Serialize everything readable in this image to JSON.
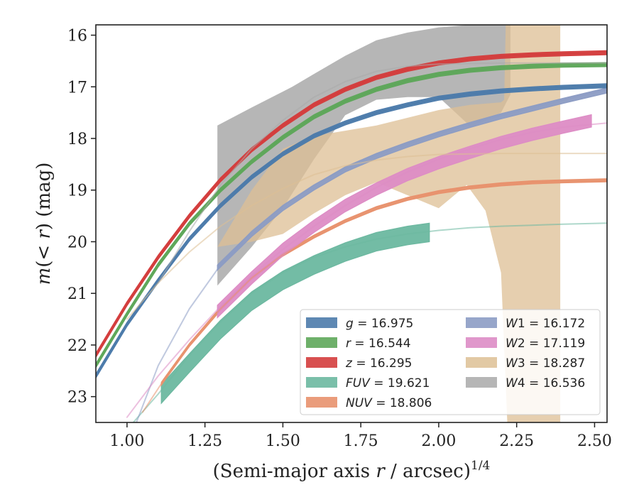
{
  "chart_data": {
    "type": "line",
    "xlabel": "(Semi-major axis r / arcsec)^1/4",
    "ylabel": "m(< r) (mag)",
    "xlim": [
      0.9,
      2.54
    ],
    "ylim": [
      23.5,
      15.8
    ],
    "y_inverted": true,
    "grid": false,
    "legend_position": "lower-right",
    "xticks": [
      1.0,
      1.25,
      1.5,
      1.75,
      2.0,
      2.25,
      2.5
    ],
    "xtick_labels": [
      "1.00",
      "1.25",
      "1.50",
      "1.75",
      "2.00",
      "2.25",
      "2.50"
    ],
    "yticks": [
      16,
      17,
      18,
      19,
      20,
      21,
      22,
      23
    ],
    "ytick_labels": [
      "16",
      "17",
      "18",
      "19",
      "20",
      "21",
      "22",
      "23"
    ],
    "xlabel_parts": {
      "pre": "(Semi-major axis ",
      "var": "r",
      "post": " / arcsec)",
      "sup": "1/4"
    },
    "ylabel_parts": {
      "var1": "m",
      "open": "(",
      "lt": "< ",
      "var2": "r",
      "close": ")",
      "unit": " (mag)"
    },
    "series": [
      {
        "name": "g",
        "legend_label": "g = 16.975",
        "color": "#4c7bab",
        "fit": {
          "x": [
            0.9,
            1.0,
            1.1,
            1.2,
            1.3,
            1.4,
            1.5,
            1.6,
            1.7,
            1.8,
            1.9,
            2.0,
            2.1,
            2.2,
            2.3,
            2.4,
            2.54
          ],
          "y": [
            22.6,
            21.6,
            20.75,
            19.95,
            19.3,
            18.75,
            18.3,
            17.95,
            17.7,
            17.5,
            17.35,
            17.22,
            17.14,
            17.08,
            17.04,
            17.01,
            16.98
          ]
        },
        "data_band": {
          "x": [
            0.9,
            1.0,
            1.1,
            1.2,
            1.3,
            1.4,
            1.5,
            1.6,
            1.7,
            1.8,
            1.9,
            2.0,
            2.1,
            2.2,
            2.3,
            2.4,
            2.54
          ],
          "y": [
            22.6,
            21.6,
            20.75,
            19.95,
            19.3,
            18.75,
            18.3,
            17.95,
            17.7,
            17.5,
            17.35,
            17.22,
            17.14,
            17.08,
            17.04,
            17.01,
            16.98
          ],
          "half_width": 0.04
        }
      },
      {
        "name": "r",
        "legend_label": "r = 16.544",
        "color": "#5ea75a",
        "fit": {
          "x": [
            0.9,
            1.0,
            1.1,
            1.2,
            1.3,
            1.4,
            1.5,
            1.6,
            1.7,
            1.8,
            1.9,
            2.0,
            2.1,
            2.2,
            2.3,
            2.4,
            2.54
          ],
          "y": [
            22.4,
            21.4,
            20.45,
            19.65,
            19.0,
            18.45,
            17.98,
            17.58,
            17.28,
            17.05,
            16.88,
            16.76,
            16.68,
            16.63,
            16.6,
            16.58,
            16.57
          ]
        },
        "data_band": {
          "x": [
            0.9,
            1.0,
            1.1,
            1.2,
            1.3,
            1.4,
            1.5,
            1.6,
            1.7,
            1.8,
            1.9,
            2.0,
            2.1,
            2.2,
            2.3,
            2.4,
            2.54
          ],
          "y": [
            22.4,
            21.4,
            20.45,
            19.65,
            19.0,
            18.45,
            17.98,
            17.58,
            17.28,
            17.05,
            16.88,
            16.76,
            16.68,
            16.63,
            16.6,
            16.58,
            16.57
          ],
          "half_width": 0.04
        }
      },
      {
        "name": "z",
        "legend_label": "z = 16.295",
        "color": "#d43d3d",
        "fit": {
          "x": [
            0.9,
            1.0,
            1.1,
            1.2,
            1.3,
            1.4,
            1.5,
            1.6,
            1.7,
            1.8,
            1.9,
            2.0,
            2.1,
            2.2,
            2.3,
            2.4,
            2.54
          ],
          "y": [
            22.2,
            21.2,
            20.3,
            19.5,
            18.8,
            18.22,
            17.75,
            17.35,
            17.05,
            16.82,
            16.66,
            16.54,
            16.46,
            16.41,
            16.38,
            16.36,
            16.34
          ]
        },
        "data_band": {
          "x": [
            0.9,
            1.0,
            1.1,
            1.2,
            1.3,
            1.4,
            1.5,
            1.6,
            1.7,
            1.8,
            1.9,
            2.0,
            2.1,
            2.2,
            2.3,
            2.4,
            2.54
          ],
          "y": [
            22.2,
            21.2,
            20.3,
            19.5,
            18.8,
            18.22,
            17.75,
            17.35,
            17.05,
            16.82,
            16.66,
            16.54,
            16.46,
            16.41,
            16.38,
            16.36,
            16.34
          ],
          "half_width": 0.04
        }
      },
      {
        "name": "FUV",
        "legend_label": "FUV = 19.621",
        "color": "#6cb8a0",
        "fit": {
          "x": [
            1.02,
            1.1,
            1.2,
            1.3,
            1.4,
            1.5,
            1.6,
            1.7,
            1.8,
            1.9,
            2.0,
            2.1,
            2.2,
            2.3,
            2.4,
            2.54
          ],
          "y": [
            23.5,
            22.95,
            22.2,
            21.55,
            21.0,
            20.6,
            20.3,
            20.1,
            19.95,
            19.85,
            19.78,
            19.73,
            19.7,
            19.68,
            19.66,
            19.64
          ]
        },
        "data_band": {
          "x": [
            1.11,
            1.2,
            1.3,
            1.4,
            1.5,
            1.6,
            1.7,
            1.8,
            1.9,
            1.97
          ],
          "y": [
            22.95,
            22.35,
            21.7,
            21.15,
            20.75,
            20.45,
            20.2,
            20.0,
            19.88,
            19.82
          ],
          "half_width": 0.18
        }
      },
      {
        "name": "NUV",
        "legend_label": "NUV = 18.806",
        "color": "#e8916d",
        "fit": {
          "x": [
            1.05,
            1.11,
            1.2,
            1.3,
            1.4,
            1.5,
            1.6,
            1.7,
            1.8,
            1.9,
            2.0,
            2.1,
            2.2,
            2.3,
            2.4,
            2.54
          ],
          "y": [
            23.3,
            22.75,
            22.0,
            21.3,
            20.7,
            20.25,
            19.9,
            19.6,
            19.35,
            19.17,
            19.04,
            18.95,
            18.89,
            18.85,
            18.83,
            18.81
          ]
        },
        "data_band": {
          "x": [
            1.11,
            1.2,
            1.3,
            1.4,
            1.5,
            1.6,
            1.7,
            1.8,
            1.9,
            2.0,
            2.1,
            2.2,
            2.3,
            2.4,
            2.54
          ],
          "y": [
            22.75,
            22.0,
            21.3,
            20.7,
            20.25,
            19.9,
            19.6,
            19.35,
            19.17,
            19.04,
            18.95,
            18.89,
            18.85,
            18.83,
            18.81
          ],
          "half_width": 0.03
        }
      },
      {
        "name": "W1",
        "legend_label": "W1 = 16.172",
        "color": "#8c9cc4",
        "fit": {
          "x": [
            1.03,
            1.1,
            1.2,
            1.3,
            1.4,
            1.5,
            1.6,
            1.7,
            1.8,
            1.9,
            2.0,
            2.1,
            2.2,
            2.3,
            2.4,
            2.54
          ],
          "y": [
            23.5,
            22.4,
            21.3,
            20.45,
            19.8,
            19.3,
            18.9,
            18.58,
            18.32,
            18.1,
            17.9,
            17.72,
            17.55,
            17.4,
            17.25,
            17.05
          ]
        },
        "data_band": {
          "x": [
            1.29,
            1.4,
            1.5,
            1.6,
            1.7,
            1.8,
            1.9,
            2.0,
            2.1,
            2.2,
            2.3,
            2.4,
            2.54
          ],
          "y": [
            20.5,
            19.85,
            19.35,
            18.95,
            18.6,
            18.34,
            18.12,
            17.92,
            17.74,
            17.57,
            17.42,
            17.27,
            17.07
          ],
          "half_width": 0.05
        }
      },
      {
        "name": "W2",
        "legend_label": "W2 = 17.119",
        "color": "#dd8cc5",
        "fit": {
          "x": [
            1.0,
            1.1,
            1.2,
            1.3,
            1.4,
            1.5,
            1.6,
            1.7,
            1.8,
            1.9,
            2.0,
            2.1,
            2.2,
            2.3,
            2.4,
            2.54
          ],
          "y": [
            23.4,
            22.6,
            21.9,
            21.25,
            20.65,
            20.15,
            19.7,
            19.3,
            18.95,
            18.65,
            18.4,
            18.2,
            18.02,
            17.88,
            17.78,
            17.7
          ]
        },
        "data_band": {
          "x": [
            1.29,
            1.4,
            1.5,
            1.6,
            1.7,
            1.8,
            1.9,
            2.0,
            2.1,
            2.2,
            2.3,
            2.4,
            2.49
          ],
          "y": [
            21.35,
            20.7,
            20.15,
            19.7,
            19.3,
            18.98,
            18.7,
            18.47,
            18.27,
            18.08,
            17.92,
            17.78,
            17.66
          ],
          "half_width": 0.12
        }
      },
      {
        "name": "W3",
        "legend_label": "W3 = 18.287",
        "color": "#ddbf94",
        "fit": {
          "x": [
            1.0,
            1.1,
            1.2,
            1.3,
            1.4,
            1.5,
            1.6,
            1.7,
            1.8,
            1.9,
            2.0,
            2.2,
            2.4,
            2.54
          ],
          "y": [
            21.5,
            20.8,
            20.2,
            19.7,
            19.3,
            18.97,
            18.7,
            18.53,
            18.42,
            18.35,
            18.31,
            18.29,
            18.29,
            18.29
          ]
        },
        "band_upper": {
          "x": [
            1.29,
            1.4,
            1.5,
            1.6,
            1.7,
            1.8,
            1.9,
            2.0,
            2.1,
            2.2,
            2.21,
            2.215,
            2.3,
            2.39
          ],
          "y": [
            20.1,
            19.0,
            18.2,
            17.95,
            17.85,
            17.75,
            17.6,
            17.45,
            17.35,
            17.3,
            17.25,
            15.8,
            15.8,
            15.8
          ]
        },
        "band_lower": {
          "x": [
            1.29,
            1.4,
            1.5,
            1.6,
            1.7,
            1.8,
            1.9,
            2.0,
            2.09,
            2.15,
            2.2,
            2.22,
            2.23,
            2.3,
            2.39
          ],
          "y": [
            20.1,
            20.0,
            19.85,
            19.45,
            19.1,
            18.85,
            19.1,
            19.35,
            18.9,
            19.4,
            20.6,
            23.5,
            23.5,
            23.5,
            23.5
          ]
        }
      },
      {
        "name": "W4",
        "legend_label": "W4 = 16.536",
        "color": "#a9a9a9",
        "fit": {
          "x": [
            1.1,
            1.2,
            1.3,
            1.4,
            1.5,
            1.6,
            1.7,
            1.8,
            1.9,
            2.0,
            2.2,
            2.4,
            2.54
          ],
          "y": [
            20.8,
            19.8,
            18.9,
            18.2,
            17.65,
            17.2,
            16.9,
            16.7,
            16.6,
            16.56,
            16.54,
            16.54,
            16.54
          ]
        },
        "band_upper": {
          "x": [
            1.29,
            1.4,
            1.53,
            1.6,
            1.7,
            1.8,
            1.9,
            2.0,
            2.1,
            2.23
          ],
          "y": [
            17.75,
            17.4,
            17.0,
            16.75,
            16.4,
            16.1,
            15.95,
            15.85,
            15.8,
            15.8
          ]
        },
        "band_lower": {
          "x": [
            1.29,
            1.4,
            1.5,
            1.6,
            1.7,
            1.8,
            1.9,
            2.0,
            2.09,
            2.1,
            2.2,
            2.23
          ],
          "y": [
            20.85,
            20.1,
            19.35,
            18.4,
            17.55,
            17.25,
            17.2,
            17.2,
            17.7,
            17.8,
            17.5,
            17.15
          ]
        }
      }
    ]
  }
}
